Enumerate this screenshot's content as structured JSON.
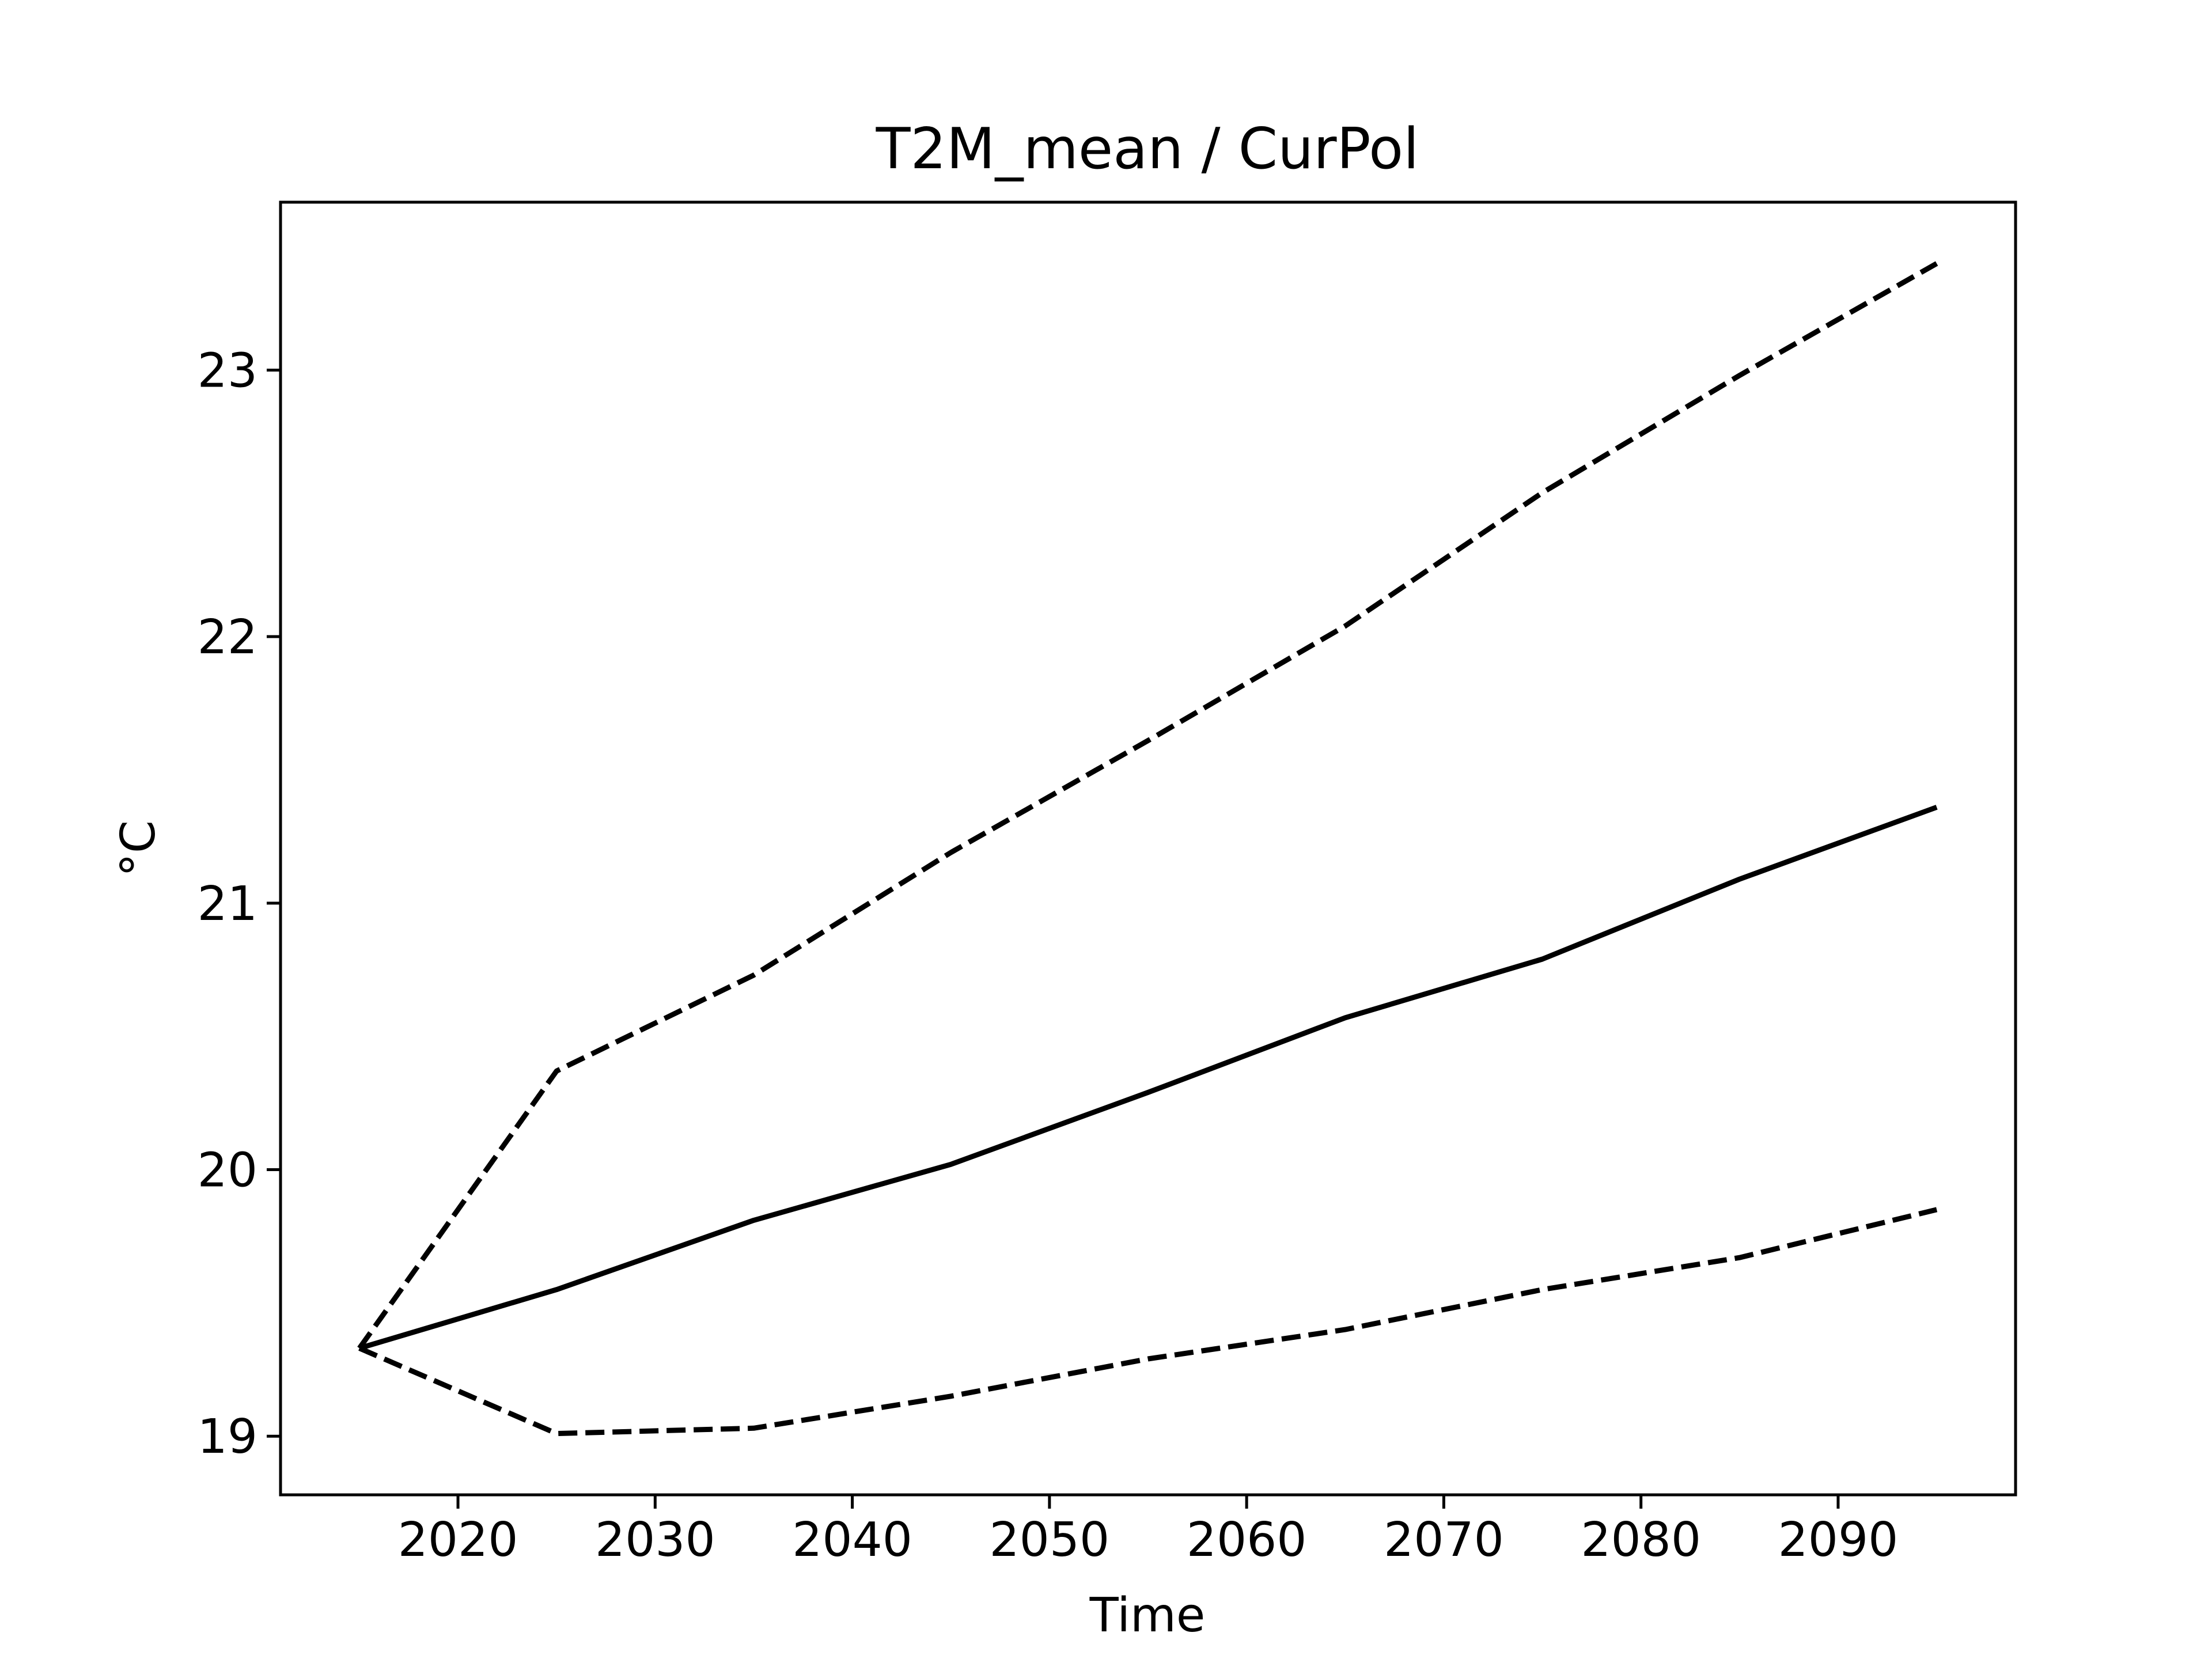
{
  "chart_data": {
    "type": "line",
    "title": "T2M_mean / CurPol",
    "xlabel": "Time",
    "ylabel": "°C",
    "xlim": [
      2011,
      2099
    ],
    "ylim": [
      18.78,
      23.63
    ],
    "x_ticks": [
      2020,
      2030,
      2040,
      2050,
      2060,
      2070,
      2080,
      2090
    ],
    "y_ticks": [
      19,
      20,
      21,
      22,
      23
    ],
    "grid": false,
    "line_color": "#000000",
    "x": [
      2015,
      2025,
      2035,
      2045,
      2055,
      2065,
      2075,
      2085,
      2095
    ],
    "series": [
      {
        "style": "solid",
        "values": [
          19.33,
          19.55,
          19.81,
          20.02,
          20.29,
          20.57,
          20.79,
          21.09,
          21.36
        ]
      },
      {
        "style": "dashed",
        "values": [
          19.33,
          20.37,
          20.73,
          21.19,
          21.61,
          22.04,
          22.54,
          22.98,
          23.4
        ]
      },
      {
        "style": "dashed",
        "values": [
          19.33,
          19.01,
          19.03,
          19.15,
          19.29,
          19.4,
          19.55,
          19.67,
          19.85
        ]
      }
    ]
  }
}
